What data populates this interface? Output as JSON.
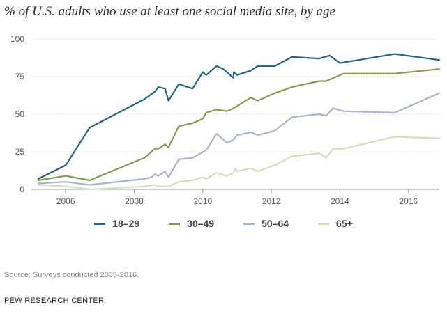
{
  "chart_data": {
    "type": "line",
    "title": "% of U.S. adults who use at least one social media site, by age",
    "xlabel": "",
    "ylabel": "",
    "xlim": [
      2005.0,
      2016.9
    ],
    "ylim": [
      0,
      100
    ],
    "x_ticks": [
      2006,
      2008,
      2010,
      2012,
      2014,
      2016
    ],
    "x_tick_labels": [
      "2006",
      "2008",
      "2010",
      "2012",
      "2014",
      "2016"
    ],
    "y_ticks": [
      0,
      25,
      50,
      75,
      100
    ],
    "y_tick_labels": [
      "0",
      "25",
      "50",
      "75",
      "100"
    ],
    "grid": "horizontal",
    "legend_position": "bottom",
    "series": [
      {
        "name": "18-29",
        "color": "#1f6688",
        "points": [
          [
            2005.2,
            7
          ],
          [
            2006.0,
            16
          ],
          [
            2006.7,
            41
          ],
          [
            2008.3,
            60
          ],
          [
            2008.6,
            65
          ],
          [
            2008.7,
            68
          ],
          [
            2008.9,
            67
          ],
          [
            2009.0,
            59
          ],
          [
            2009.3,
            70
          ],
          [
            2009.7,
            67
          ],
          [
            2010.0,
            78
          ],
          [
            2010.1,
            76
          ],
          [
            2010.4,
            82
          ],
          [
            2010.6,
            80
          ],
          [
            2010.9,
            74
          ],
          [
            2010.9,
            78
          ],
          [
            2011.0,
            76
          ],
          [
            2011.4,
            79
          ],
          [
            2011.6,
            82
          ],
          [
            2012.1,
            82
          ],
          [
            2012.6,
            88
          ],
          [
            2013.4,
            87
          ],
          [
            2013.7,
            89
          ],
          [
            2014.0,
            84
          ],
          [
            2015.6,
            90
          ],
          [
            2016.9,
            86
          ]
        ]
      },
      {
        "name": "30-49",
        "color": "#8a9a45",
        "points": [
          [
            2005.2,
            6
          ],
          [
            2006.0,
            9
          ],
          [
            2006.7,
            6
          ],
          [
            2008.3,
            21
          ],
          [
            2008.6,
            27
          ],
          [
            2008.7,
            27
          ],
          [
            2008.9,
            30
          ],
          [
            2009.0,
            28
          ],
          [
            2009.3,
            42
          ],
          [
            2009.7,
            44
          ],
          [
            2010.0,
            47
          ],
          [
            2010.1,
            51
          ],
          [
            2010.4,
            53
          ],
          [
            2010.7,
            52
          ],
          [
            2010.9,
            54
          ],
          [
            2011.4,
            61
          ],
          [
            2011.6,
            59
          ],
          [
            2012.1,
            64
          ],
          [
            2012.6,
            68
          ],
          [
            2013.4,
            72
          ],
          [
            2013.6,
            72
          ],
          [
            2014.1,
            77
          ],
          [
            2015.6,
            77
          ],
          [
            2016.9,
            80
          ]
        ]
      },
      {
        "name": "50-64",
        "color": "#a6b4cf",
        "points": [
          [
            2005.2,
            4
          ],
          [
            2006.0,
            5
          ],
          [
            2006.7,
            3
          ],
          [
            2008.3,
            7
          ],
          [
            2008.5,
            8
          ],
          [
            2008.6,
            10
          ],
          [
            2008.7,
            9
          ],
          [
            2008.9,
            12
          ],
          [
            2009.0,
            8
          ],
          [
            2009.3,
            20
          ],
          [
            2009.7,
            21
          ],
          [
            2010.1,
            26
          ],
          [
            2010.4,
            37
          ],
          [
            2010.7,
            31
          ],
          [
            2010.9,
            33
          ],
          [
            2011.0,
            36
          ],
          [
            2011.4,
            38
          ],
          [
            2011.6,
            36
          ],
          [
            2012.1,
            39
          ],
          [
            2012.6,
            48
          ],
          [
            2013.4,
            50
          ],
          [
            2013.6,
            49
          ],
          [
            2013.8,
            54
          ],
          [
            2014.1,
            52
          ],
          [
            2015.6,
            51
          ],
          [
            2016.9,
            64
          ]
        ]
      },
      {
        "name": "65+",
        "color": "#d4dfb6",
        "points": [
          [
            2005.2,
            3
          ],
          [
            2006.0,
            2
          ],
          [
            2006.7,
            0
          ],
          [
            2008.3,
            2
          ],
          [
            2008.6,
            3
          ],
          [
            2008.7,
            2
          ],
          [
            2009.0,
            2
          ],
          [
            2009.3,
            5
          ],
          [
            2009.7,
            6
          ],
          [
            2010.0,
            8
          ],
          [
            2010.1,
            7
          ],
          [
            2010.4,
            11
          ],
          [
            2010.7,
            9
          ],
          [
            2010.9,
            11
          ],
          [
            2010.95,
            14
          ],
          [
            2011.0,
            12
          ],
          [
            2011.4,
            14
          ],
          [
            2011.6,
            12
          ],
          [
            2012.1,
            16
          ],
          [
            2012.6,
            22
          ],
          [
            2013.4,
            24
          ],
          [
            2013.6,
            21
          ],
          [
            2013.8,
            27
          ],
          [
            2014.1,
            27
          ],
          [
            2015.6,
            35
          ],
          [
            2016.9,
            34
          ]
        ]
      }
    ]
  },
  "legend": [
    {
      "label": "18–29",
      "color": "#1f6688"
    },
    {
      "label": "30–49",
      "color": "#8a9a45"
    },
    {
      "label": "50–64",
      "color": "#a6b4cf"
    },
    {
      "label": "65+",
      "color": "#d4dfb6"
    }
  ],
  "footer": {
    "source": "Source: Surveys conducted 2005-2016.",
    "organization": "PEW RESEARCH CENTER"
  }
}
